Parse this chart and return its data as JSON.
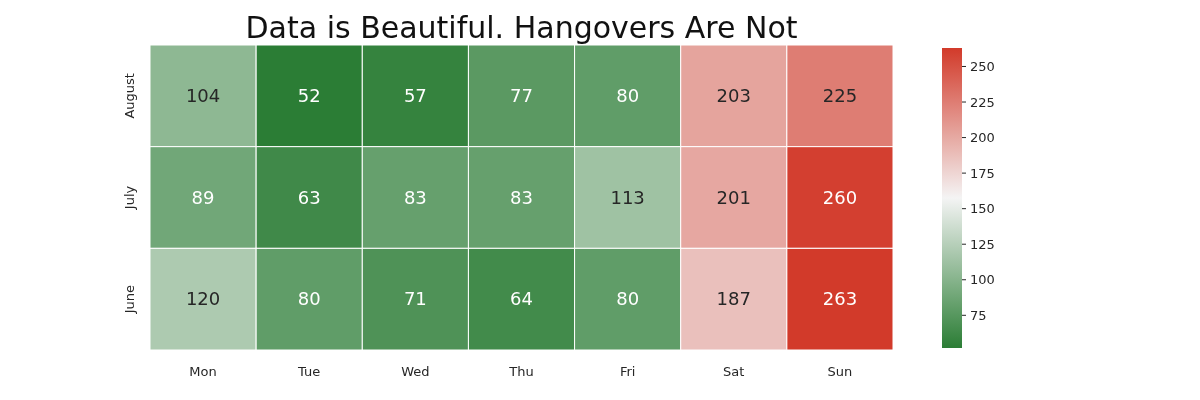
{
  "chart_data": {
    "type": "heatmap",
    "title": "Data is Beautiful. Hangovers Are Not",
    "categories": [
      "Mon",
      "Tue",
      "Wed",
      "Thu",
      "Fri",
      "Sat",
      "Sun"
    ],
    "y_categories": [
      "August",
      "July",
      "June"
    ],
    "cells": [
      [
        104,
        52,
        57,
        77,
        80,
        203,
        225
      ],
      [
        89,
        63,
        83,
        83,
        113,
        201,
        260
      ],
      [
        120,
        80,
        71,
        64,
        80,
        187,
        263
      ]
    ],
    "data_labels": true,
    "clim": [
      52,
      263
    ],
    "cticks": [
      75,
      100,
      125,
      150,
      175,
      200,
      225,
      250
    ]
  }
}
